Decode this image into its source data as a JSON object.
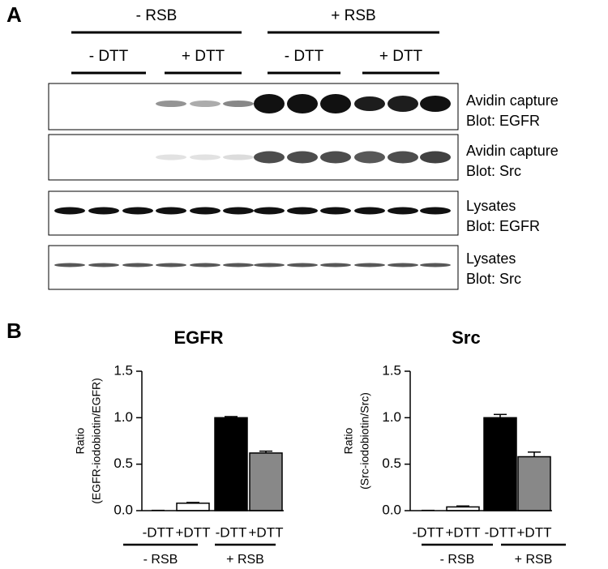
{
  "panel_a": {
    "label": "A",
    "groups": [
      {
        "label": "- RSB",
        "conditions": [
          "- DTT",
          "+ DTT"
        ]
      },
      {
        "label": "+ RSB",
        "conditions": [
          "- DTT",
          "+ DTT"
        ]
      }
    ],
    "blots": [
      [
        "Avidin capture",
        "Blot: EGFR"
      ],
      [
        "Avidin capture",
        "Blot: Src"
      ],
      [
        "Lysates",
        "Blot: EGFR"
      ],
      [
        "Lysates",
        "Blot: Src"
      ]
    ]
  },
  "panel_b": {
    "label": "B"
  },
  "chart_data": [
    {
      "type": "bar",
      "title": "EGFR",
      "ylabel": [
        "Ratio",
        "(EGFR-iodobiotin/EGFR)"
      ],
      "categories": [
        "-DTT",
        "+DTT",
        "-DTT",
        "+DTT"
      ],
      "groups": [
        "- RSB",
        "+ RSB"
      ],
      "values": [
        0,
        0.08,
        1.0,
        0.62
      ],
      "errors": [
        0.003,
        0.008,
        0.012,
        0.02
      ],
      "colors": [
        "#ffffff",
        "#ffffff",
        "#000000",
        "#888888"
      ],
      "ylim": [
        0,
        1.5
      ],
      "yticks": [
        {
          "value": 0,
          "label": "0.0"
        },
        {
          "value": 0.5,
          "label": "0.5"
        },
        {
          "value": 1,
          "label": "1.0"
        },
        {
          "value": 1.5,
          "label": "1.5"
        }
      ]
    },
    {
      "type": "bar",
      "title": "Src",
      "ylabel": [
        "Ratio",
        "(Src-iodobiotin/Src)"
      ],
      "categories": [
        "-DTT",
        "+DTT",
        "-DTT",
        "+DTT"
      ],
      "groups": [
        "- RSB",
        "+ RSB"
      ],
      "values": [
        0,
        0.04,
        1.0,
        0.58
      ],
      "errors": [
        0.003,
        0.01,
        0.035,
        0.05
      ],
      "colors": [
        "#ffffff",
        "#ffffff",
        "#000000",
        "#888888"
      ],
      "ylim": [
        0,
        1.5
      ],
      "yticks": [
        {
          "value": 0,
          "label": "0.0"
        },
        {
          "value": 0.5,
          "label": "0.5"
        },
        {
          "value": 1,
          "label": "1.0"
        },
        {
          "value": 1.5,
          "label": "1.5"
        }
      ]
    }
  ]
}
